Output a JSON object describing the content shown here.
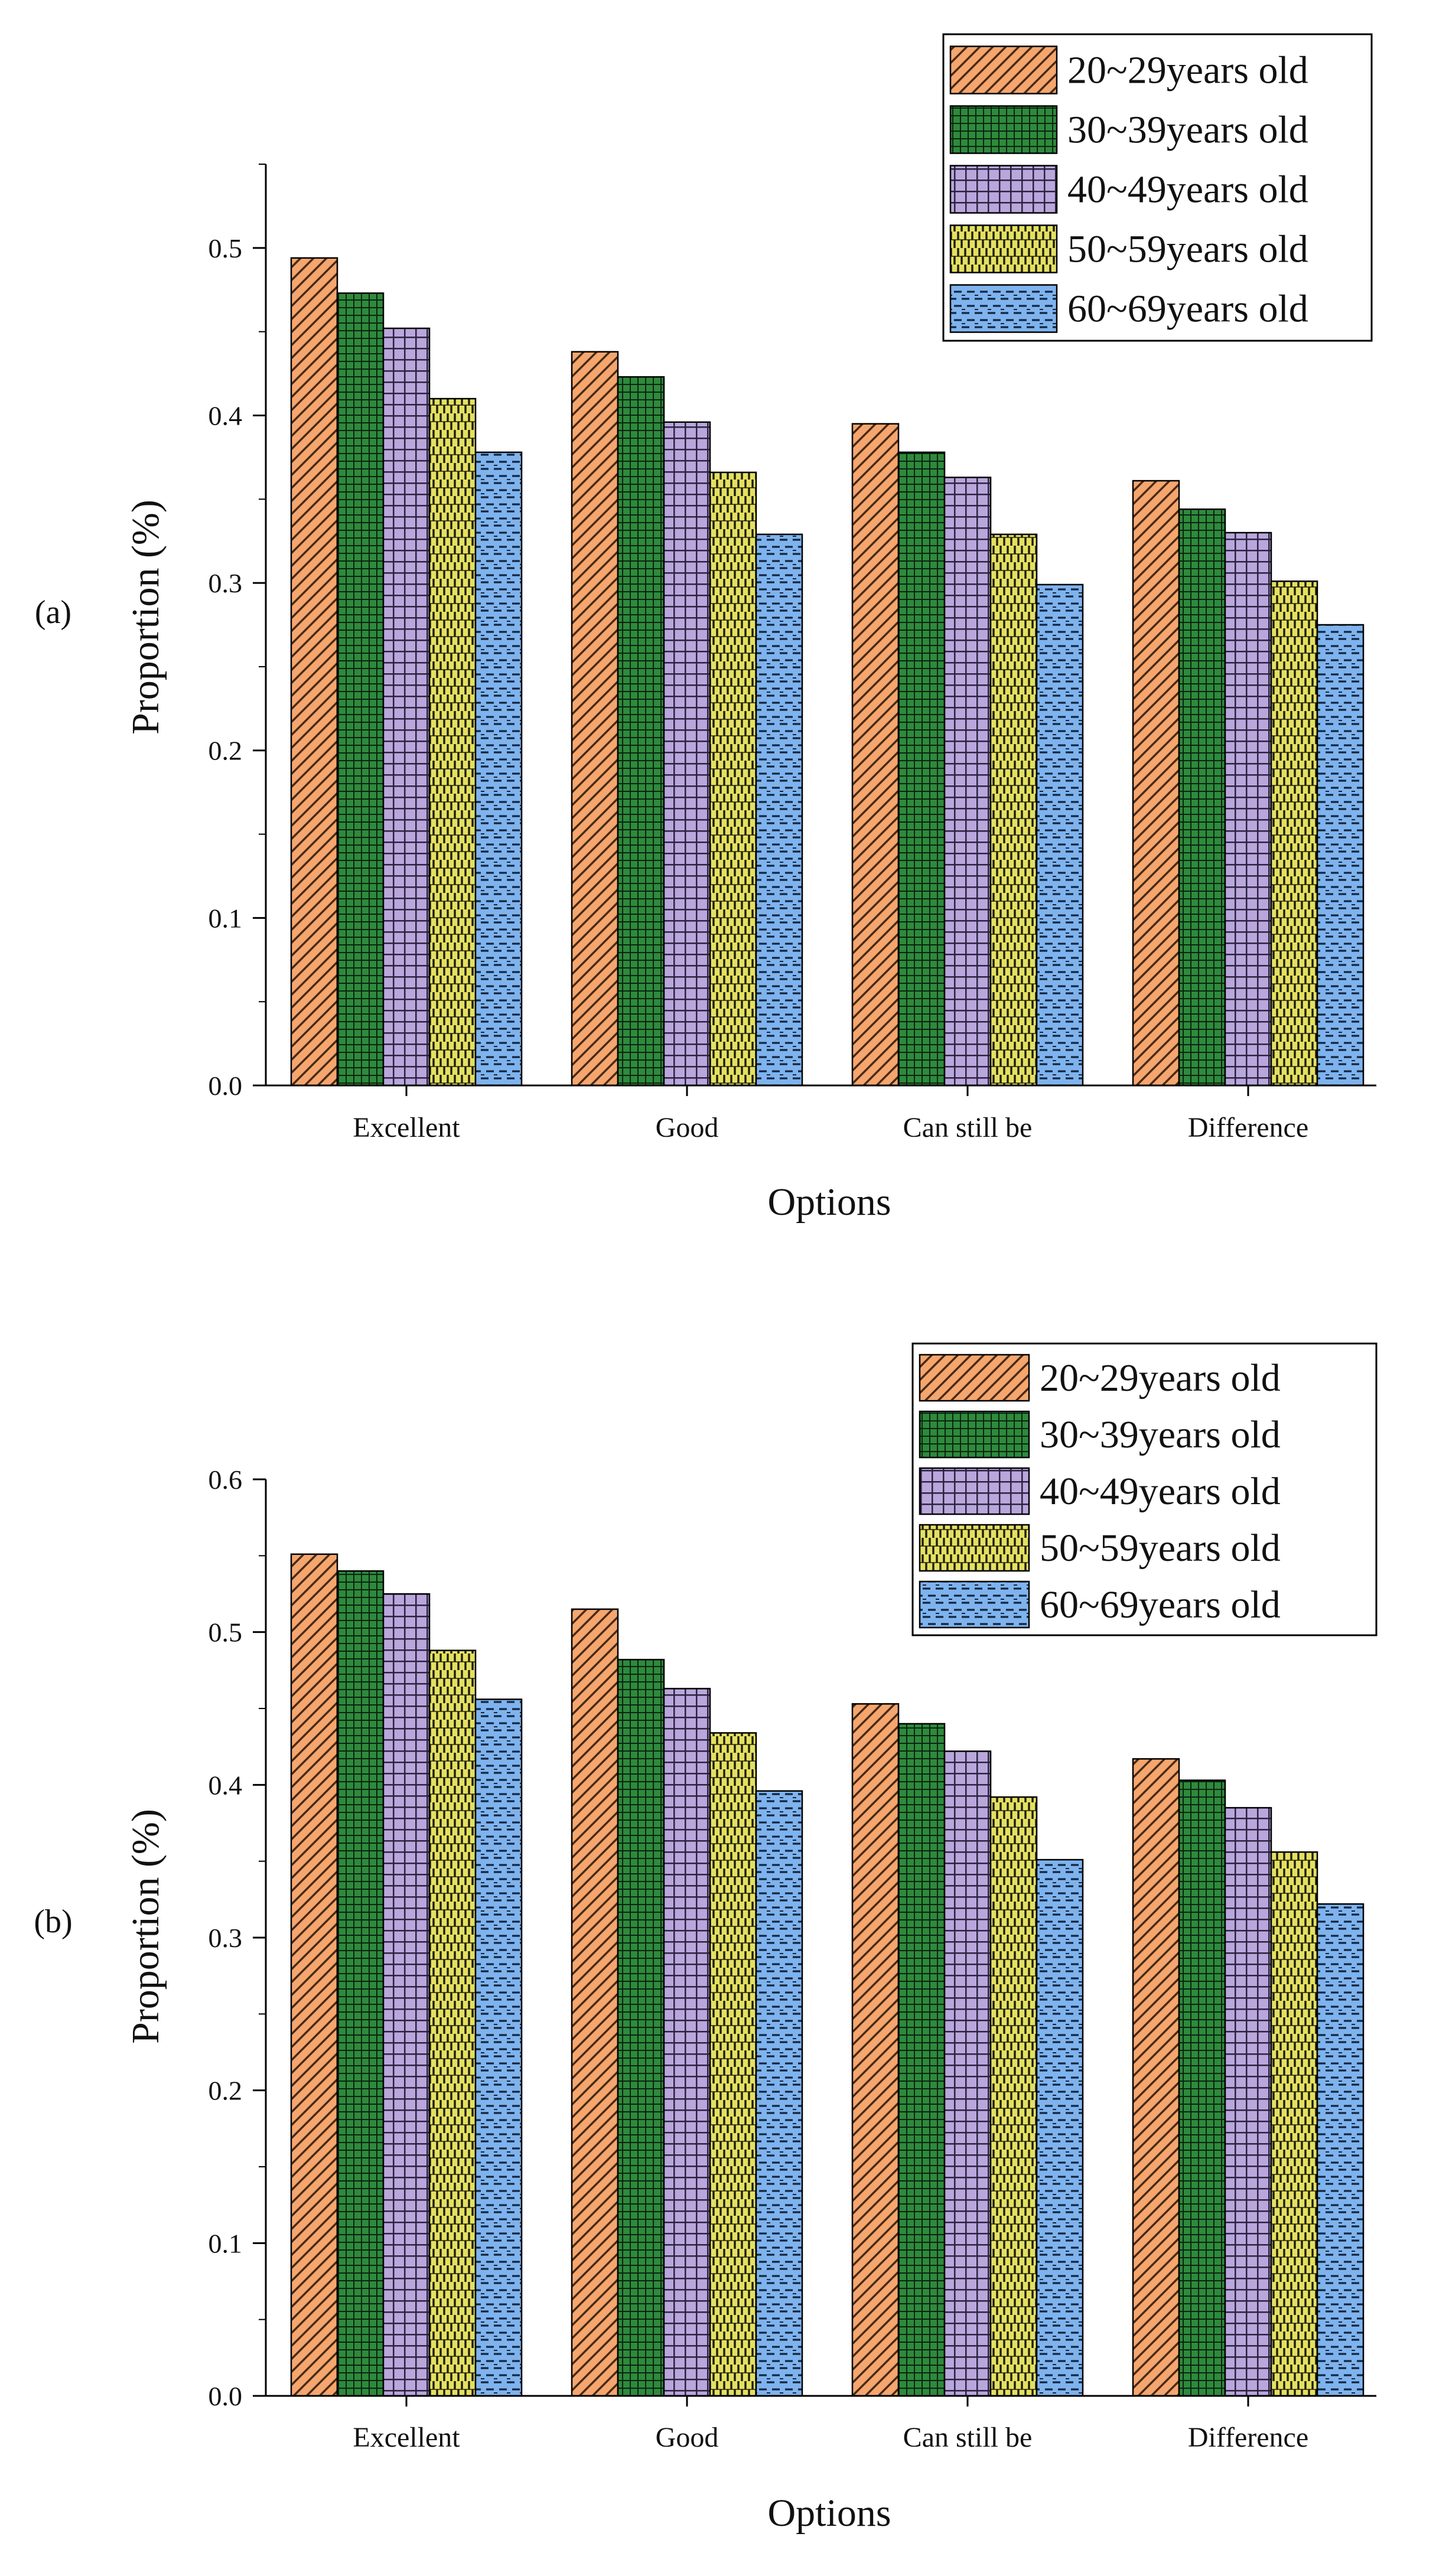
{
  "chart_data": [
    {
      "type": "bar",
      "panel_label": "(a)",
      "title": "",
      "xlabel": "Options",
      "ylabel": "Proportion (%)",
      "categories": [
        "Excellent",
        "Good",
        "Can still be",
        "Difference"
      ],
      "ylim": [
        0,
        0.55
      ],
      "yticks": [
        "0.0",
        "0.1",
        "0.2",
        "0.3",
        "0.4",
        "0.5"
      ],
      "grid": false,
      "legend_position": "top-right",
      "series": [
        {
          "name": "20~29years old",
          "values": [
            0.494,
            0.438,
            0.395,
            0.361
          ],
          "color": "#F4A66E",
          "pattern": "diagonal"
        },
        {
          "name": "30~39years old",
          "values": [
            0.473,
            0.423,
            0.378,
            0.344
          ],
          "color": "#2E8A3C",
          "pattern": "fine-grid"
        },
        {
          "name": "40~49years old",
          "values": [
            0.452,
            0.396,
            0.363,
            0.33
          ],
          "color": "#B9A7DC",
          "pattern": "coarse-grid"
        },
        {
          "name": "50~59years old",
          "values": [
            0.41,
            0.366,
            0.329,
            0.301
          ],
          "color": "#E4E062",
          "pattern": "vertical-checker"
        },
        {
          "name": "60~69years old",
          "values": [
            0.378,
            0.329,
            0.299,
            0.275
          ],
          "color": "#7EB3EE",
          "pattern": "horizontal-dashes"
        }
      ]
    },
    {
      "type": "bar",
      "panel_label": "(b)",
      "title": "",
      "xlabel": "Options",
      "ylabel": "Proportion (%)",
      "categories": [
        "Excellent",
        "Good",
        "Can still be",
        "Difference"
      ],
      "ylim": [
        0,
        0.6
      ],
      "yticks": [
        "0.0",
        "0.1",
        "0.2",
        "0.3",
        "0.4",
        "0.5",
        "0.6"
      ],
      "grid": false,
      "legend_position": "top-right",
      "series": [
        {
          "name": "20~29years old",
          "values": [
            0.551,
            0.515,
            0.453,
            0.417
          ],
          "color": "#F4A66E",
          "pattern": "diagonal"
        },
        {
          "name": "30~39years old",
          "values": [
            0.54,
            0.482,
            0.44,
            0.403
          ],
          "color": "#2E8A3C",
          "pattern": "fine-grid"
        },
        {
          "name": "40~49years old",
          "values": [
            0.525,
            0.463,
            0.422,
            0.385
          ],
          "color": "#B9A7DC",
          "pattern": "coarse-grid"
        },
        {
          "name": "50~59years old",
          "values": [
            0.488,
            0.434,
            0.392,
            0.356
          ],
          "color": "#E4E062",
          "pattern": "vertical-checker"
        },
        {
          "name": "60~69years old",
          "values": [
            0.456,
            0.396,
            0.351,
            0.322
          ],
          "color": "#7EB3EE",
          "pattern": "horizontal-dashes"
        }
      ]
    }
  ]
}
